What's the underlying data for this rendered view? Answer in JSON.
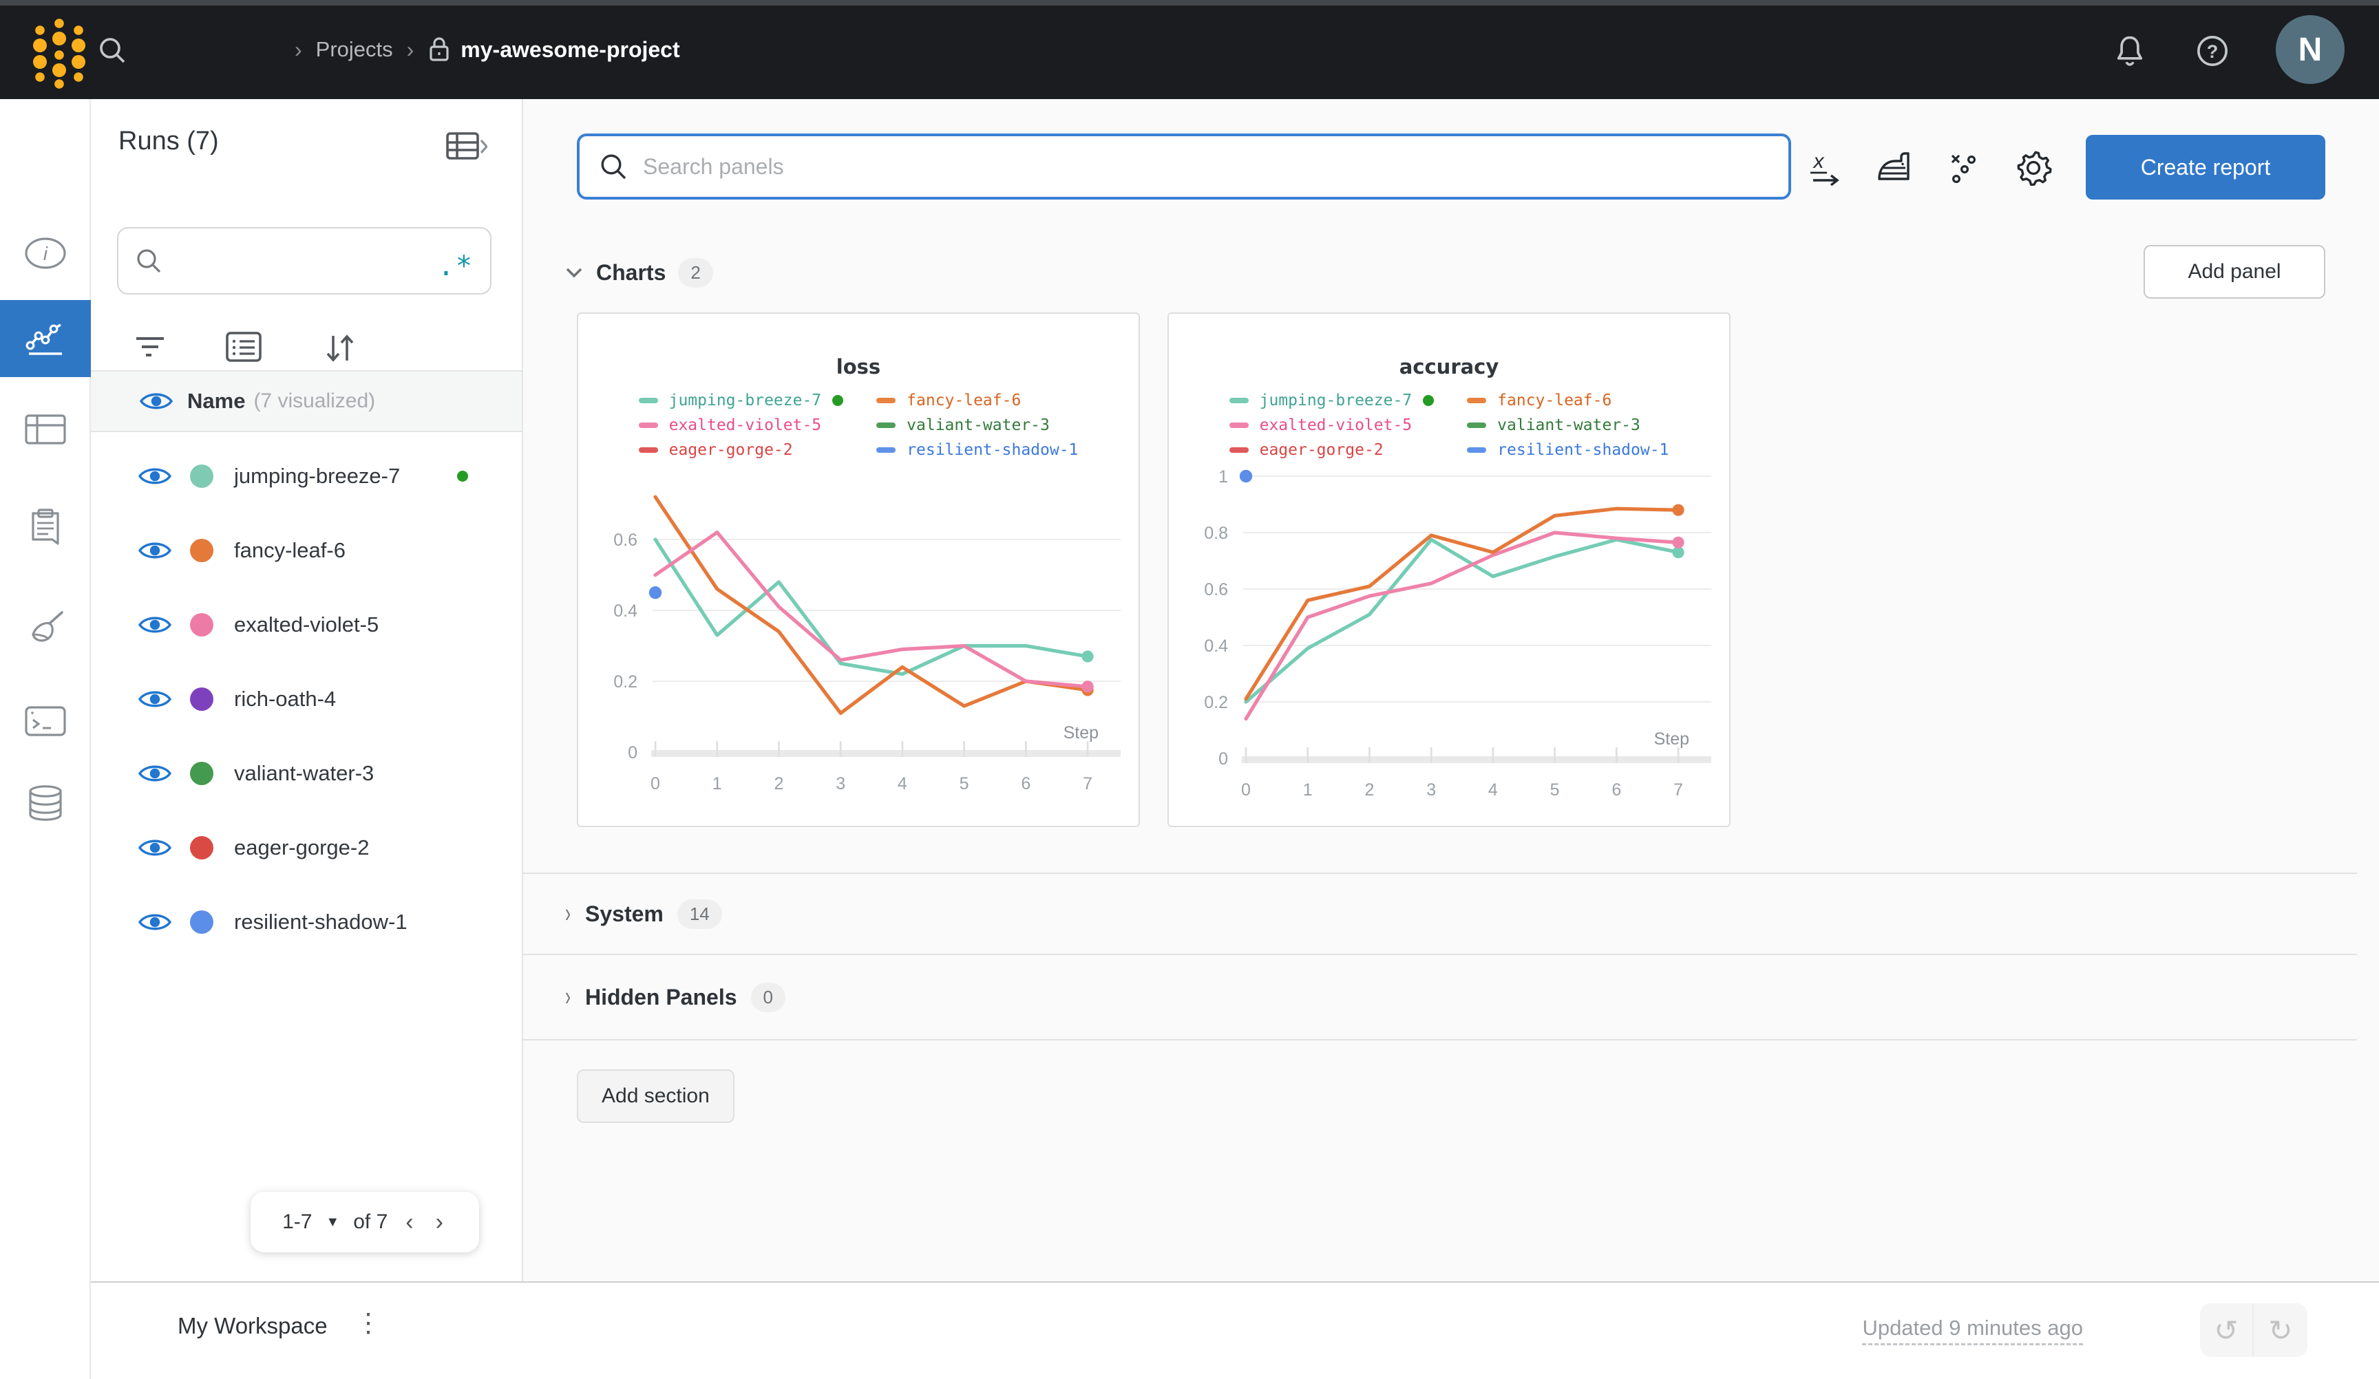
{
  "topbar": {
    "breadcrumb": {
      "projects": "Projects",
      "project": "my-awesome-project"
    },
    "avatar_initial": "N"
  },
  "sidebar": {
    "runs_title": "Runs (7)",
    "search_placeholder": "",
    "regex_icon": ".*",
    "header": {
      "name": "Name",
      "visualized": "(7 visualized)"
    },
    "runs": [
      {
        "name": "jumping-breeze-7",
        "color": "#7fcab2",
        "active": true
      },
      {
        "name": "fancy-leaf-6",
        "color": "#e5793a",
        "active": false
      },
      {
        "name": "exalted-violet-5",
        "color": "#ee7ba6",
        "active": false
      },
      {
        "name": "rich-oath-4",
        "color": "#7e41be",
        "active": false
      },
      {
        "name": "valiant-water-3",
        "color": "#449a4e",
        "active": false
      },
      {
        "name": "eager-gorge-2",
        "color": "#d94a45",
        "active": false
      },
      {
        "name": "resilient-shadow-1",
        "color": "#5b8ee8",
        "active": false
      }
    ],
    "pagination": {
      "range": "1-7",
      "of": "of 7"
    }
  },
  "main": {
    "panel_search_placeholder": "Search panels",
    "create_report": "Create report",
    "charts_section": {
      "label": "Charts",
      "count": "2"
    },
    "system_section": {
      "label": "System",
      "count": "14"
    },
    "hidden_section": {
      "label": "Hidden Panels",
      "count": "0"
    },
    "add_panel": "Add panel",
    "add_section": "Add section"
  },
  "footer": {
    "workspace": "My Workspace",
    "updated": "Updated 9 minutes ago"
  },
  "legend_colors": {
    "active_dot": "#259b24"
  },
  "chart_data": [
    {
      "type": "line",
      "title": "loss",
      "xlabel": "Step",
      "x": [
        0,
        1,
        2,
        3,
        4,
        5,
        6,
        7
      ],
      "xticks": [
        "0",
        "1",
        "2",
        "3",
        "4",
        "5",
        "6",
        "7"
      ],
      "yticks": [
        0,
        0.2,
        0.4,
        0.6
      ],
      "ytick_labels": [
        "0",
        "0.2",
        "0.4",
        "0.6"
      ],
      "ylim": [
        0,
        0.75
      ],
      "grid": true,
      "legend_position": "top",
      "legend": [
        {
          "label": "jumping-breeze-7",
          "swatch": "#78cbb3",
          "text": "#3fa493",
          "active_dot": true
        },
        {
          "label": "fancy-leaf-6",
          "swatch": "#e8833f",
          "text": "#d8641f"
        },
        {
          "label": "exalted-violet-5",
          "swatch": "#f083ab",
          "text": "#e84e8a"
        },
        {
          "label": "valiant-water-3",
          "swatch": "#4f9e58",
          "text": "#337a3b"
        },
        {
          "label": "eager-gorge-2",
          "swatch": "#e05858",
          "text": "#d94545"
        },
        {
          "label": "resilient-shadow-1",
          "swatch": "#5e92ea",
          "text": "#3b78e0"
        }
      ],
      "series": [
        {
          "name": "jumping-breeze-7",
          "color": "#74ccb4",
          "values": [
            0.6,
            0.33,
            0.48,
            0.25,
            0.22,
            0.3,
            0.3,
            0.27
          ],
          "end_dot": true
        },
        {
          "name": "fancy-leaf-6",
          "color": "#e5793a",
          "values": [
            0.72,
            0.46,
            0.34,
            0.11,
            0.24,
            0.13,
            0.2,
            0.175
          ],
          "end_dot": true
        },
        {
          "name": "exalted-violet-5",
          "color": "#ef82aa",
          "values": [
            0.5,
            0.62,
            0.41,
            0.26,
            0.29,
            0.3,
            0.2,
            0.185
          ],
          "end_dot": true
        }
      ],
      "points": [
        {
          "name": "resilient-shadow-1",
          "color": "#5b8ee8",
          "x": 0,
          "y": 0.45
        }
      ]
    },
    {
      "type": "line",
      "title": "accuracy",
      "xlabel": "Step",
      "x": [
        0,
        1,
        2,
        3,
        4,
        5,
        6,
        7
      ],
      "xticks": [
        "0",
        "1",
        "2",
        "3",
        "4",
        "5",
        "6",
        "7"
      ],
      "yticks": [
        0,
        0.2,
        0.4,
        0.6,
        0.8,
        1
      ],
      "ytick_labels": [
        "0",
        "0.2",
        "0.4",
        "0.6",
        "0.8",
        "1"
      ],
      "ylim": [
        0,
        1.05
      ],
      "grid": true,
      "legend_position": "top",
      "legend": [
        {
          "label": "jumping-breeze-7",
          "swatch": "#78cbb3",
          "text": "#3fa493",
          "active_dot": true
        },
        {
          "label": "fancy-leaf-6",
          "swatch": "#e8833f",
          "text": "#d8641f"
        },
        {
          "label": "exalted-violet-5",
          "swatch": "#f083ab",
          "text": "#e84e8a"
        },
        {
          "label": "valiant-water-3",
          "swatch": "#4f9e58",
          "text": "#337a3b"
        },
        {
          "label": "eager-gorge-2",
          "swatch": "#e05858",
          "text": "#d94545"
        },
        {
          "label": "resilient-shadow-1",
          "swatch": "#5e92ea",
          "text": "#3b78e0"
        }
      ],
      "series": [
        {
          "name": "jumping-breeze-7",
          "color": "#74ccb4",
          "values": [
            0.2,
            0.39,
            0.51,
            0.775,
            0.645,
            0.715,
            0.775,
            0.73
          ],
          "end_dot": true
        },
        {
          "name": "exalted-violet-5",
          "color": "#ef82aa",
          "values": [
            0.14,
            0.5,
            0.575,
            0.62,
            0.72,
            0.8,
            0.78,
            0.765
          ],
          "end_dot": true
        },
        {
          "name": "fancy-leaf-6",
          "color": "#e5793a",
          "values": [
            0.21,
            0.56,
            0.61,
            0.79,
            0.73,
            0.86,
            0.885,
            0.88
          ],
          "end_dot": true
        }
      ],
      "points": [
        {
          "name": "resilient-shadow-1",
          "color": "#5b8ee8",
          "x": 0,
          "y": 1.0
        }
      ]
    }
  ]
}
